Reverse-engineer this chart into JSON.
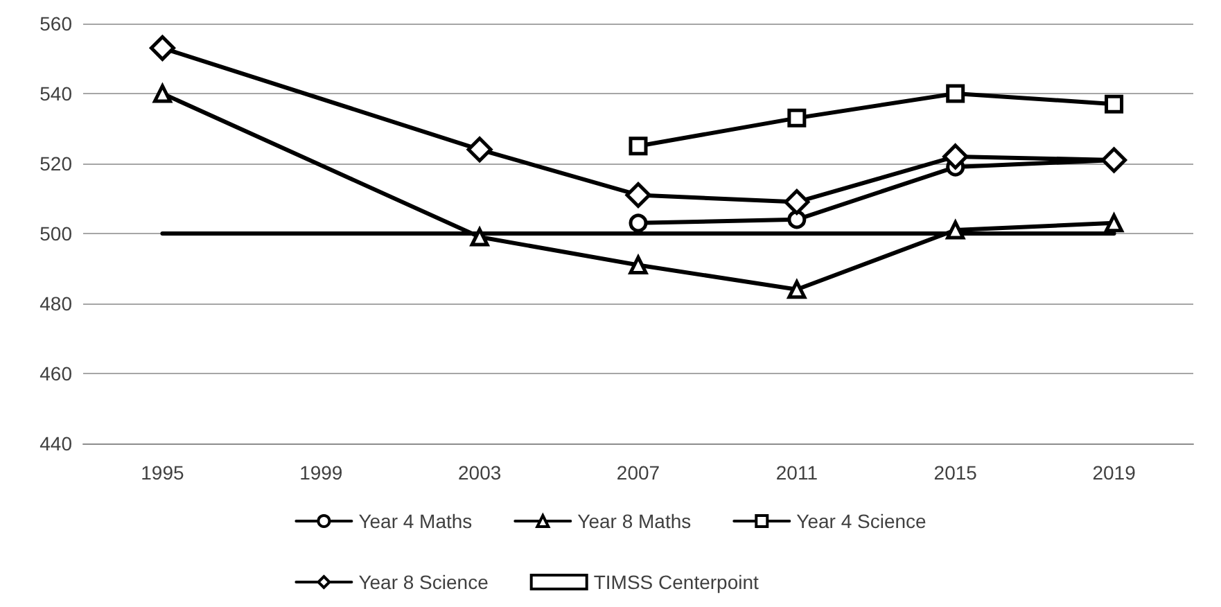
{
  "chart_data": {
    "type": "line",
    "categories": [
      "1995",
      "1999",
      "2003",
      "2007",
      "2011",
      "2015",
      "2019"
    ],
    "series": [
      {
        "name": "Year 4 Maths",
        "color": "#000000",
        "marker": "circle",
        "values": [
          null,
          null,
          null,
          503,
          504,
          519,
          521
        ]
      },
      {
        "name": "Year 8 Maths",
        "color": "#000000",
        "marker": "triangle",
        "values": [
          540,
          null,
          499,
          491,
          484,
          501,
          503
        ]
      },
      {
        "name": "Year 4 Science",
        "color": "#000000",
        "marker": "square",
        "values": [
          null,
          null,
          null,
          525,
          533,
          540,
          537
        ]
      },
      {
        "name": "Year 8 Science",
        "color": "#000000",
        "marker": "diamond",
        "values": [
          553,
          null,
          524,
          511,
          509,
          522,
          521
        ]
      },
      {
        "name": "TIMSS Centerpoint",
        "color": "#000000",
        "marker": "none",
        "values": [
          500,
          500,
          500,
          500,
          500,
          500,
          500
        ]
      }
    ],
    "ylim": [
      440,
      560
    ],
    "yticks": [
      440,
      460,
      480,
      500,
      520,
      540,
      560
    ],
    "grid": "y",
    "legend": "bottom",
    "line_style": "solid"
  }
}
